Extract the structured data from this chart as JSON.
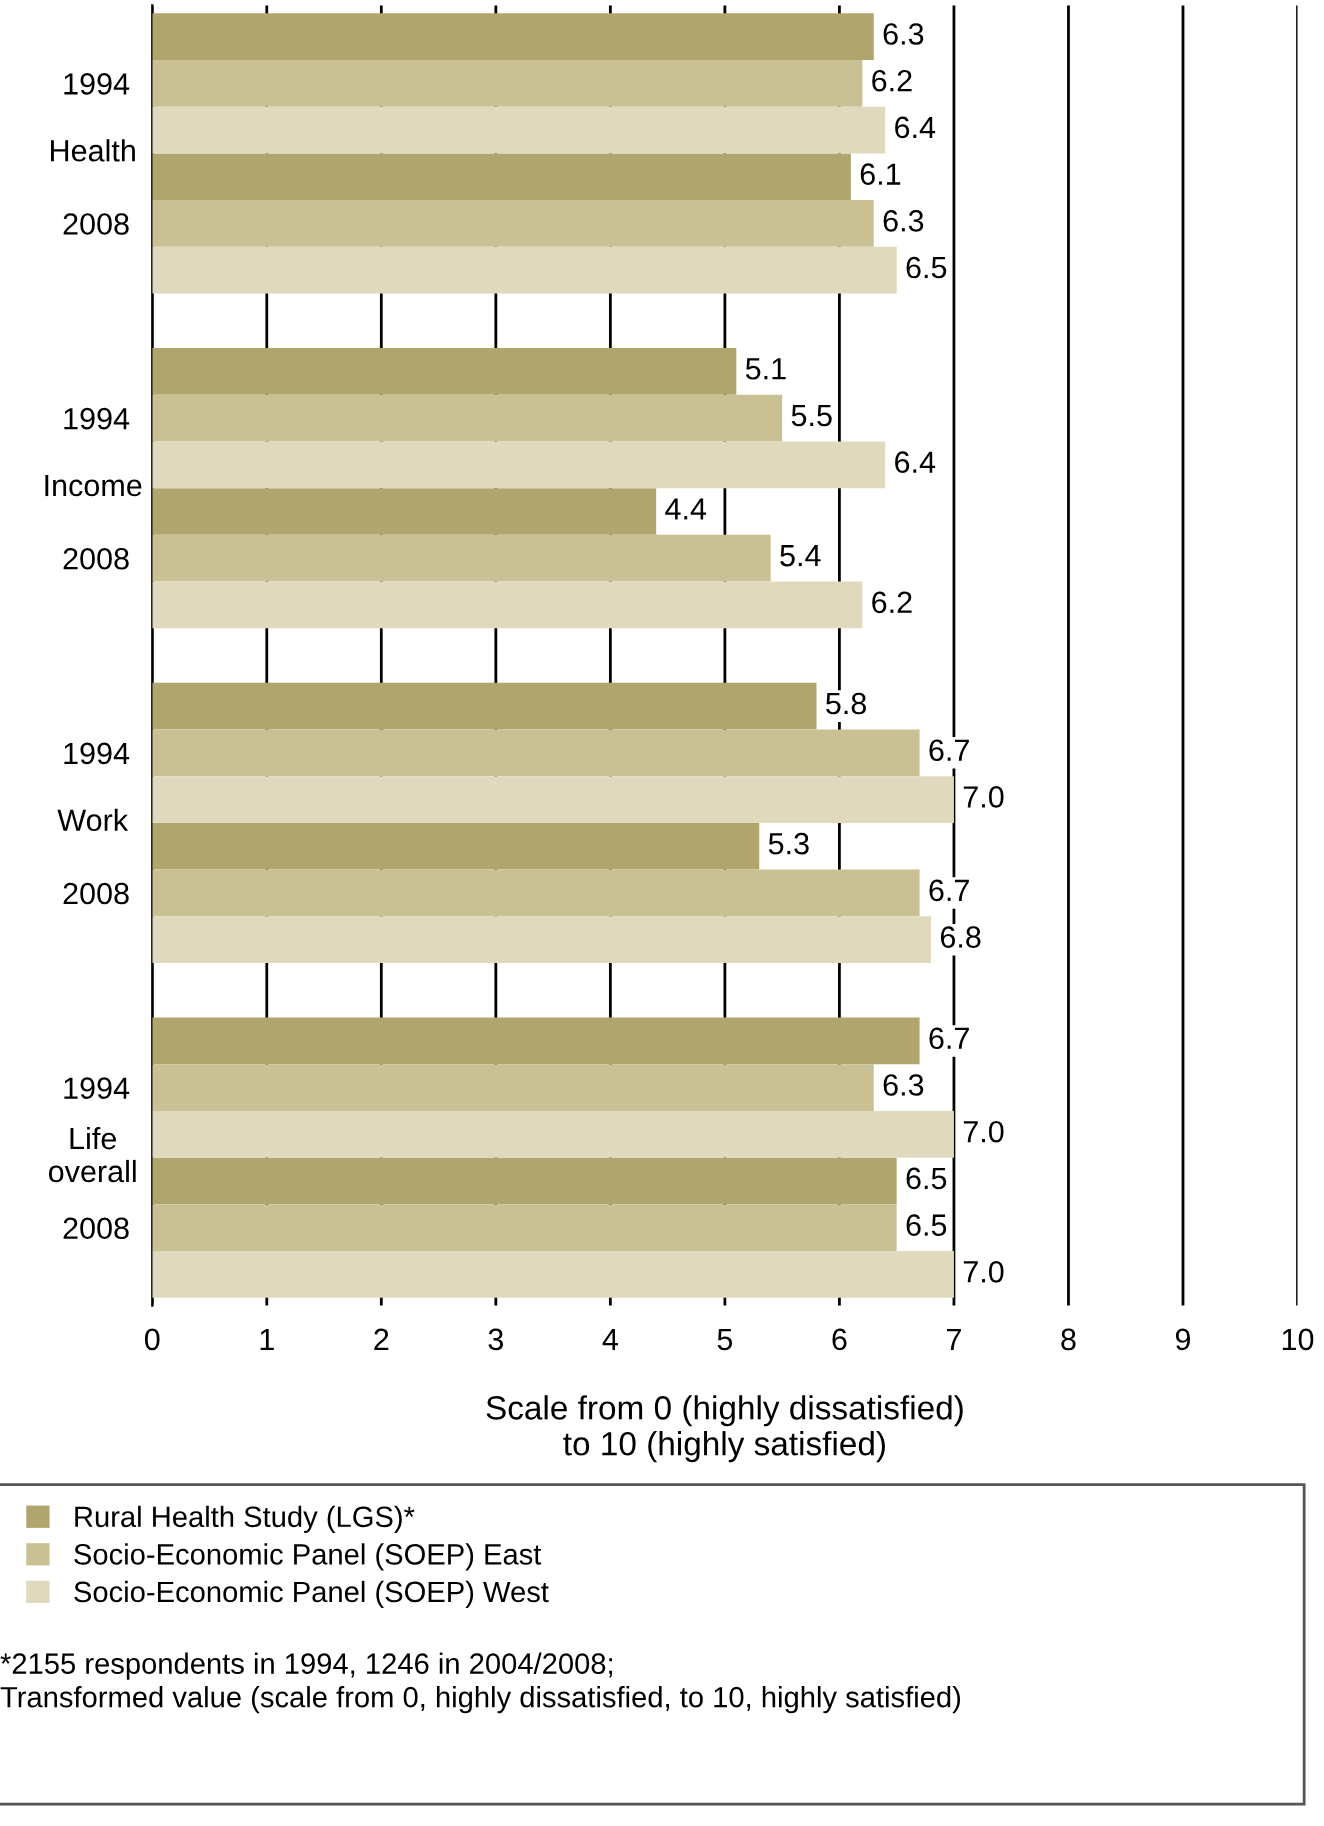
{
  "chart_data": {
    "type": "bar",
    "orientation": "horizontal",
    "categories": [
      "1994",
      "2008",
      "1994",
      "2008",
      "1994",
      "2008",
      "1994",
      "2008"
    ],
    "series": [
      {
        "name": "Rural Health Study (LGS)*",
        "color": "#b1a56e",
        "values": [
          6.3,
          6.1,
          5.1,
          4.4,
          5.8,
          5.3,
          6.7,
          6.5
        ]
      },
      {
        "name": "Socio-Economic Panel (SOEP) East",
        "color": "#c9c194",
        "values": [
          6.2,
          6.3,
          5.5,
          5.4,
          6.7,
          6.7,
          6.3,
          6.5
        ]
      },
      {
        "name": "Socio-Economic Panel (SOEP) West",
        "color": "#e0d9bd",
        "values": [
          6.4,
          6.5,
          6.4,
          6.2,
          7.0,
          6.8,
          7.0,
          7.0
        ],
        "value_labels": [
          "6.4",
          "6.5",
          "6.4",
          "6.2",
          "7.0",
          "6.8",
          "7.0",
          "7.0"
        ]
      }
    ],
    "xlim": [
      0,
      10
    ],
    "xticks": [
      0,
      1,
      2,
      3,
      4,
      5,
      6,
      7,
      8,
      9,
      10
    ],
    "xlabel": "Scale from 0 (highly dissatisfied)\nto 10 (highly satisfied)",
    "grid": "x",
    "legend": "bottom",
    "data_labels": true,
    "annotations": [
      "Health",
      "Income",
      "Work",
      "Life\noverall",
      "*2155 respondents in 1994, 1246 in 2004/2008;\nTransformed value (scale from 0, highly dissatisfied, to 10, highly satisfied)"
    ]
  }
}
